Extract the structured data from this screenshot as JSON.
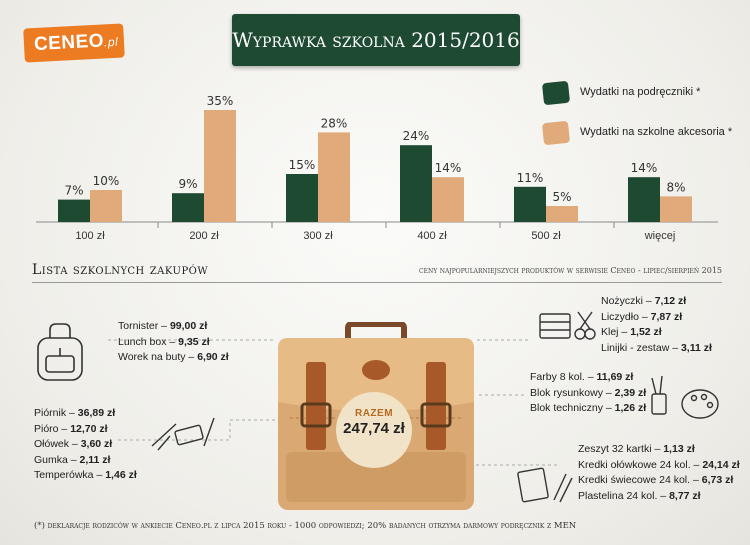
{
  "brand": {
    "name": "CENEO",
    "suffix": ".pl"
  },
  "title": "Wyprawka szkolna 2015/2016",
  "legend": [
    {
      "label": "Wydatki na podręczniki *",
      "color": "#1e4a32",
      "icon": "book-icon"
    },
    {
      "label": "Wydatki na szkolne akcesoria *",
      "color": "#e0aa7a",
      "icon": "pencils-icon"
    }
  ],
  "chart_data": {
    "type": "bar",
    "categories": [
      "100 zł",
      "200 zł",
      "300 zł",
      "400 zł",
      "500 zł",
      "więcej"
    ],
    "series": [
      {
        "name": "Wydatki na podręczniki *",
        "values": [
          7,
          9,
          15,
          24,
          11,
          14
        ],
        "labels": [
          "7%",
          "9%",
          "15%",
          "24%",
          "11%",
          "14%"
        ],
        "color": "#1e4a32"
      },
      {
        "name": "Wydatki na szkolne akcesoria *",
        "values": [
          10,
          35,
          28,
          14,
          5,
          8
        ],
        "labels": [
          "10%",
          "35%",
          "28%",
          "14%",
          "5%",
          "8%"
        ],
        "color": "#e0aa7a"
      }
    ],
    "ylim": [
      0,
      35
    ],
    "legend_position": "top-right",
    "grid": false
  },
  "section": {
    "title": "Lista szkolnych zakupów",
    "note": "ceny najpopularniejszych produktów w serwisie Ceneo - lipiec/sierpień 2015"
  },
  "groups": {
    "bag_items": [
      {
        "name": "Tornister",
        "price": "99,00 zł"
      },
      {
        "name": "Lunch box",
        "price": "9,35 zł"
      },
      {
        "name": "Worek na buty",
        "price": "6,90 zł"
      }
    ],
    "writing_items": [
      {
        "name": "Piórnik",
        "price": "36,89 zł"
      },
      {
        "name": "Pióro",
        "price": "12,70 zł"
      },
      {
        "name": "Ołówek",
        "price": "3,60 zł"
      },
      {
        "name": "Gumka",
        "price": "2,11 zł"
      },
      {
        "name": "Temperówka",
        "price": "1,46 zł"
      }
    ],
    "tools_items": [
      {
        "name": "Nożyczki",
        "price": "7,12 zł"
      },
      {
        "name": "Liczydło",
        "price": "7,87 zł"
      },
      {
        "name": "Klej",
        "price": "1,52 zł"
      },
      {
        "name": "Linijki - zestaw",
        "price": "3,11 zł"
      }
    ],
    "art_items": [
      {
        "name": "Farby 8 kol.",
        "price": "11,69 zł"
      },
      {
        "name": "Blok rysunkowy",
        "price": "2,39 zł"
      },
      {
        "name": "Blok techniczny",
        "price": "1,26 zł"
      }
    ],
    "notebook_items": [
      {
        "name": "Zeszyt 32 kartki",
        "price": "1,13 zł"
      },
      {
        "name": "Kredki ołówkowe 24 kol.",
        "price": "24,14 zł"
      },
      {
        "name": "Kredki świecowe 24 kol.",
        "price": "6,73 zł"
      },
      {
        "name": "Plastelina 24 kol.",
        "price": "8,77 zł"
      }
    ]
  },
  "total": {
    "label": "RAZEM",
    "value": "247,74 zł"
  },
  "footnote": "(*) deklaracje rodziców w ankiecie Ceneo.pl z lipca 2015 roku - 1000 odpowiedzi; 20% badanych otrzyma darmowy podręcznik z MEN"
}
